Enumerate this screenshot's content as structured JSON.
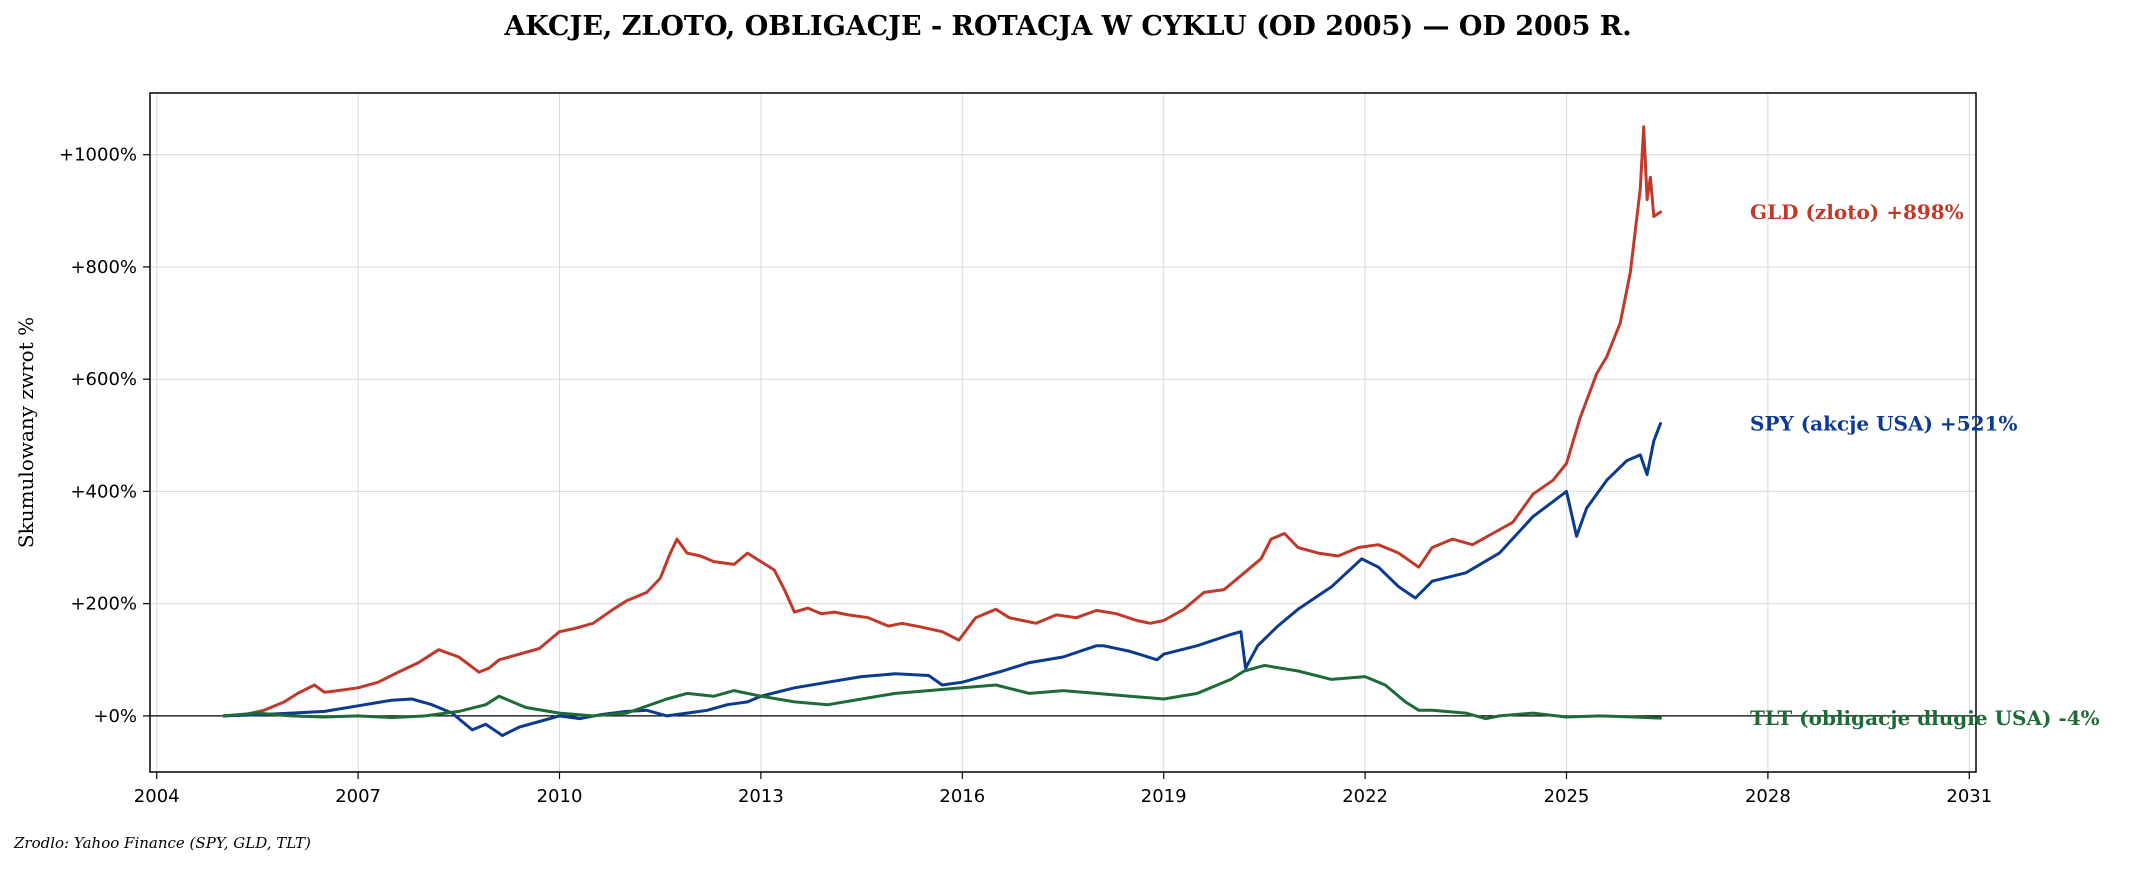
{
  "chart_data": {
    "type": "line",
    "title": "AKCJE, ZLOTO, OBLIGACJE - ROTACJA W CYKLU (OD 2005) — OD 2005 R.",
    "xlabel": "",
    "ylabel": "Skumulowany zwrot %",
    "xlim": [
      2003.9,
      2031.1
    ],
    "ylim": [
      -100,
      1110
    ],
    "x_ticks": [
      2004,
      2007,
      2010,
      2013,
      2016,
      2019,
      2022,
      2025,
      2028,
      2031
    ],
    "y_ticks": [
      0,
      200,
      400,
      600,
      800,
      1000
    ],
    "y_tick_labels": [
      "+0%",
      "+200%",
      "+400%",
      "+600%",
      "+800%",
      "+1000%"
    ],
    "grid": true,
    "zero_line": true,
    "series": [
      {
        "name": "GLD (zloto)",
        "end_label": "GLD (zloto)  +898%",
        "color": "#c0392b",
        "x": [
          2005.0,
          2005.3,
          2005.6,
          2005.9,
          2006.1,
          2006.35,
          2006.5,
          2006.7,
          2007.0,
          2007.3,
          2007.6,
          2007.9,
          2008.2,
          2008.5,
          2008.8,
          2008.95,
          2009.1,
          2009.4,
          2009.7,
          2010.0,
          2010.2,
          2010.5,
          2010.8,
          2011.0,
          2011.3,
          2011.5,
          2011.65,
          2011.75,
          2011.9,
          2012.1,
          2012.3,
          2012.6,
          2012.8,
          2013.0,
          2013.2,
          2013.35,
          2013.5,
          2013.7,
          2013.9,
          2014.1,
          2014.3,
          2014.6,
          2014.9,
          2015.1,
          2015.4,
          2015.7,
          2015.95,
          2016.2,
          2016.5,
          2016.7,
          2016.9,
          2017.1,
          2017.4,
          2017.7,
          2018.0,
          2018.3,
          2018.6,
          2018.8,
          2019.0,
          2019.3,
          2019.6,
          2019.9,
          2020.2,
          2020.45,
          2020.6,
          2020.8,
          2021.0,
          2021.3,
          2021.6,
          2021.9,
          2022.2,
          2022.5,
          2022.8,
          2023.0,
          2023.3,
          2023.6,
          2023.9,
          2024.2,
          2024.5,
          2024.8,
          2025.0,
          2025.2,
          2025.45,
          2025.6,
          2025.8,
          2025.95,
          2026.1,
          2026.15,
          2026.2,
          2026.25,
          2026.3,
          2026.4
        ],
        "y": [
          0,
          2,
          10,
          25,
          40,
          55,
          42,
          45,
          50,
          60,
          78,
          95,
          118,
          105,
          78,
          85,
          100,
          110,
          120,
          150,
          155,
          165,
          190,
          205,
          220,
          245,
          290,
          315,
          290,
          285,
          275,
          270,
          290,
          275,
          260,
          225,
          185,
          192,
          182,
          185,
          180,
          175,
          160,
          165,
          158,
          150,
          135,
          175,
          190,
          175,
          170,
          165,
          180,
          175,
          188,
          182,
          170,
          165,
          170,
          190,
          220,
          225,
          255,
          280,
          315,
          325,
          300,
          290,
          285,
          300,
          305,
          290,
          265,
          300,
          315,
          305,
          325,
          345,
          395,
          420,
          450,
          530,
          610,
          640,
          700,
          790,
          940,
          1050,
          920,
          960,
          890,
          898
        ]
      },
      {
        "name": "SPY (akcje USA)",
        "end_label": "SPY (akcje USA)  +521%",
        "color": "#0b3a91",
        "x": [
          2005.0,
          2005.5,
          2006.0,
          2006.5,
          2007.0,
          2007.5,
          2007.8,
          2008.1,
          2008.4,
          2008.7,
          2008.9,
          2009.15,
          2009.4,
          2009.7,
          2010.0,
          2010.3,
          2010.6,
          2011.0,
          2011.3,
          2011.6,
          2011.9,
          2012.2,
          2012.5,
          2012.8,
          2013.0,
          2013.5,
          2014.0,
          2014.5,
          2015.0,
          2015.5,
          2015.7,
          2016.0,
          2016.3,
          2016.6,
          2017.0,
          2017.5,
          2018.0,
          2018.1,
          2018.5,
          2018.9,
          2019.0,
          2019.5,
          2020.0,
          2020.15,
          2020.22,
          2020.4,
          2020.7,
          2021.0,
          2021.5,
          2021.95,
          2022.2,
          2022.5,
          2022.75,
          2023.0,
          2023.5,
          2024.0,
          2024.5,
          2025.0,
          2025.15,
          2025.3,
          2025.6,
          2025.9,
          2026.1,
          2026.2,
          2026.3,
          2026.4
        ],
        "y": [
          0,
          2,
          5,
          8,
          18,
          28,
          30,
          20,
          5,
          -25,
          -15,
          -35,
          -20,
          -10,
          0,
          -5,
          2,
          8,
          10,
          0,
          5,
          10,
          20,
          25,
          35,
          50,
          60,
          70,
          75,
          72,
          55,
          60,
          70,
          80,
          95,
          105,
          125,
          125,
          115,
          100,
          110,
          125,
          145,
          150,
          85,
          125,
          160,
          190,
          230,
          280,
          265,
          230,
          210,
          240,
          255,
          290,
          355,
          400,
          320,
          370,
          420,
          455,
          465,
          430,
          490,
          521
        ]
      },
      {
        "name": "TLT (obligacje dlugie USA)",
        "end_label": "TLT (obligacje dlugie USA)  -4%",
        "color": "#1e6b38",
        "x": [
          2005.0,
          2005.5,
          2006.0,
          2006.5,
          2007.0,
          2007.5,
          2008.0,
          2008.5,
          2008.9,
          2009.1,
          2009.5,
          2010.0,
          2010.5,
          2011.0,
          2011.6,
          2011.9,
          2012.3,
          2012.6,
          2013.0,
          2013.5,
          2014.0,
          2014.5,
          2015.0,
          2015.5,
          2016.0,
          2016.5,
          2017.0,
          2017.5,
          2018.0,
          2018.5,
          2019.0,
          2019.5,
          2020.0,
          2020.2,
          2020.5,
          2021.0,
          2021.5,
          2022.0,
          2022.3,
          2022.6,
          2022.8,
          2023.0,
          2023.5,
          2023.8,
          2024.0,
          2024.5,
          2025.0,
          2025.5,
          2026.0,
          2026.4
        ],
        "y": [
          0,
          5,
          0,
          -2,
          0,
          -3,
          0,
          8,
          20,
          35,
          15,
          5,
          0,
          5,
          30,
          40,
          35,
          45,
          35,
          25,
          20,
          30,
          40,
          45,
          50,
          55,
          40,
          45,
          40,
          35,
          30,
          40,
          65,
          80,
          90,
          80,
          65,
          70,
          55,
          25,
          10,
          10,
          5,
          -5,
          0,
          5,
          -2,
          0,
          -2,
          -4
        ]
      }
    ],
    "source": "Zrodlo: Yahoo Finance (SPY, GLD, TLT)"
  }
}
